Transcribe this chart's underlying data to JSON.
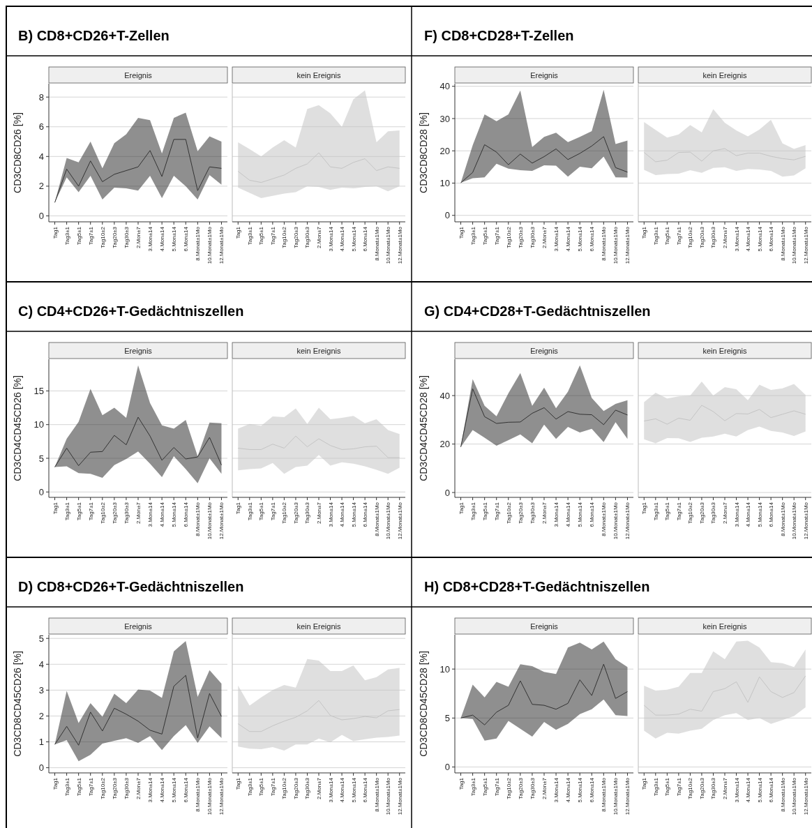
{
  "chart_data": [
    {
      "type": "line",
      "title": "B) CD8+CD26+T-Zellen",
      "subtitle": "Ereignis",
      "ylabel": "CD3CD8CD26 [%]",
      "categories": [
        "Tag1",
        "Tag3±1",
        "Tag5±1",
        "Tag7±1",
        "Tag10±2",
        "Tag20±3",
        "Tag30±3",
        "2.Mon±7",
        "3.Mon±14",
        "4.Mon±14",
        "5.Mon±14",
        "6.Mon±14",
        "8.Monat±1Mo",
        "10.Monat±1Mo",
        "12.Monat±1Mo"
      ],
      "ylim": [
        -0.4,
        8.9
      ],
      "yticks": [
        0,
        2,
        4,
        6,
        8
      ],
      "grid": "y",
      "series": [
        {
          "color": "#333333",
          "values": [
            0.9,
            3.15,
            2.0,
            3.7,
            2.3,
            2.8,
            3.05,
            3.3,
            4.4,
            2.65,
            5.15,
            5.15,
            1.7,
            3.3,
            3.2
          ],
          "lower": [
            0.9,
            2.6,
            1.6,
            2.7,
            1.1,
            1.9,
            1.85,
            1.7,
            2.7,
            1.2,
            2.7,
            2.0,
            1.1,
            2.75,
            2.1
          ],
          "upper": [
            0.9,
            3.9,
            3.6,
            5.0,
            3.2,
            4.9,
            5.5,
            6.6,
            6.45,
            4.2,
            6.6,
            6.95,
            4.35,
            5.35,
            5.0
          ]
        }
      ]
    },
    {
      "type": "line",
      "subtitle": "kein Ereignis",
      "tick_labels": "x",
      "categories": [
        "Tag1",
        "Tag3±1",
        "Tag5±1",
        "Tag7±1",
        "Tag10±2",
        "Tag20±3",
        "Tag30±3",
        "2.Mon±7",
        "3.Mon±14",
        "4.Mon±14",
        "5.Mon±14",
        "6.Mon±14",
        "8.Monat±1Mo",
        "10.Monat±1Mo",
        "12.Monat±1Mo"
      ],
      "ylim": [
        -0.4,
        8.9
      ],
      "yticks": [
        0,
        2,
        4,
        6,
        8
      ],
      "grid": "y",
      "series": [
        {
          "color": "#c4c4c4",
          "values": [
            3.0,
            2.4,
            2.25,
            2.5,
            2.75,
            3.2,
            3.5,
            4.25,
            3.3,
            3.2,
            3.6,
            3.85,
            3.05,
            3.3,
            3.2
          ],
          "lower": [
            1.9,
            1.55,
            1.2,
            1.35,
            1.5,
            1.6,
            2.0,
            1.95,
            1.75,
            1.9,
            1.85,
            1.95,
            2.0,
            1.65,
            2.0
          ],
          "upper": [
            4.95,
            4.5,
            4.0,
            4.6,
            5.1,
            4.6,
            7.2,
            7.45,
            6.9,
            6.0,
            7.85,
            8.45,
            4.95,
            5.7,
            5.75
          ]
        }
      ]
    },
    {
      "type": "line",
      "title": "F) CD8+CD28+T-Zellen",
      "subtitle": "Ereignis",
      "ylabel": "CD3CD8CD28 [%]",
      "categories": [
        "Tag1",
        "Tag3±1",
        "Tag5±1",
        "Tag7±1",
        "Tag10±2",
        "Tag20±3",
        "Tag30±3",
        "2.Mon±7",
        "3.Mon±14",
        "4.Mon±14",
        "5.Mon±14",
        "6.Mon±14",
        "8.Monat±1Mo",
        "10.Monat±1Mo",
        "12.Monat±1Mo"
      ],
      "ylim": [
        -2,
        40.8
      ],
      "yticks": [
        0,
        10,
        20,
        30,
        40
      ],
      "grid": "y",
      "series": [
        {
          "color": "#333333",
          "values": [
            10.1,
            13.3,
            21.9,
            19.6,
            15.7,
            19.0,
            16.2,
            18.2,
            20.6,
            17.3,
            19.2,
            21.5,
            24.4,
            14.8,
            13.4
          ],
          "lower": [
            10.1,
            11.5,
            11.8,
            16,
            14.5,
            14,
            13.8,
            15.5,
            15.4,
            12,
            15.1,
            14.6,
            18.2,
            11.8,
            11.7
          ],
          "upper": [
            10.1,
            21.7,
            31.3,
            29.2,
            31.3,
            38.7,
            21.2,
            24.3,
            25.6,
            22.7,
            24.3,
            26.1,
            38.9,
            22.1,
            23.2
          ]
        }
      ]
    },
    {
      "type": "line",
      "subtitle": "kein Ereignis",
      "tick_labels": "x",
      "categories": [
        "Tag1",
        "Tag3±1",
        "Tag5±1",
        "Tag7±1",
        "Tag10±2",
        "Tag20±3",
        "Tag30±3",
        "2.Mon±7",
        "3.Mon±14",
        "4.Mon±14",
        "5.Mon±14",
        "6.Mon±14",
        "8.Monat±1Mo",
        "10.Monat±1Mo",
        "12.Monat±1Mo"
      ],
      "ylim": [
        -2,
        40.8
      ],
      "yticks": [
        0,
        10,
        20,
        30,
        40
      ],
      "grid": "y",
      "series": [
        {
          "color": "#c4c4c4",
          "values": [
            19.5,
            16.6,
            17.1,
            19.5,
            19.6,
            16.8,
            20.0,
            20.7,
            18.5,
            19.3,
            19.3,
            18.3,
            17.6,
            17.2,
            18.3
          ],
          "lower": [
            14.1,
            12.5,
            12.8,
            12.9,
            14.0,
            13.2,
            14.7,
            14.9,
            13.8,
            14.4,
            14.2,
            13.8,
            12.0,
            12.4,
            14.6
          ],
          "upper": [
            28.9,
            26.5,
            24.1,
            25.1,
            28.0,
            25.7,
            32.9,
            28.7,
            26.3,
            24.5,
            26.6,
            29.6,
            22.3,
            20.6,
            21.8
          ]
        }
      ]
    },
    {
      "type": "line",
      "title": "C) CD4+CD26+T-Gedächtniszellen",
      "subtitle": "Ereignis",
      "ylabel": "CD3CD4CD45CD26 [%]",
      "categories": [
        "Tag1",
        "Tag3±1",
        "Tag5±1",
        "Tag7±1",
        "Tag10±2",
        "Tag20±3",
        "Tag30±3",
        "2.Mon±7",
        "3.Mon±14",
        "4.Mon±14",
        "5.Mon±14",
        "6.Mon±14",
        "8.Monat±1Mo",
        "10.Monat±1Mo",
        "12.Monat±1Mo"
      ],
      "ylim": [
        -0.8,
        19.7
      ],
      "yticks": [
        0,
        5,
        10,
        15
      ],
      "grid": "y",
      "series": [
        {
          "color": "#333333",
          "values": [
            3.7,
            6.5,
            3.9,
            5.9,
            6.0,
            8.4,
            7.0,
            11.1,
            8.3,
            4.7,
            6.6,
            4.9,
            5.2,
            8.1,
            4.0
          ],
          "lower": [
            3.7,
            3.8,
            2.8,
            2.7,
            2.1,
            4.0,
            4.9,
            6.0,
            4.2,
            2.2,
            5.3,
            3.4,
            1.3,
            5.0,
            2.7
          ],
          "upper": [
            3.7,
            7.9,
            10.4,
            15.3,
            11.4,
            12.5,
            11.0,
            18.8,
            13.2,
            9.9,
            9.4,
            10.7,
            5.3,
            10.3,
            10.2
          ]
        }
      ]
    },
    {
      "type": "line",
      "subtitle": "kein Ereignis",
      "tick_labels": "x",
      "categories": [
        "Tag1",
        "Tag3±1",
        "Tag5±1",
        "Tag7±1",
        "Tag10±2",
        "Tag20±3",
        "Tag30±3",
        "2.Mon±7",
        "3.Mon±14",
        "4.Mon±14",
        "5.Mon±14",
        "6.Mon±14",
        "8.Monat±1Mo",
        "10.Monat±1Mo",
        "12.Monat±1Mo"
      ],
      "ylim": [
        -0.8,
        19.7
      ],
      "yticks": [
        0,
        5,
        10,
        15
      ],
      "grid": "y",
      "series": [
        {
          "color": "#c4c4c4",
          "values": [
            6.5,
            6.3,
            6.3,
            7.1,
            6.5,
            8.3,
            6.7,
            7.9,
            6.9,
            6.3,
            6.4,
            6.7,
            6.8,
            5.1,
            5.1
          ],
          "lower": [
            3.2,
            3.4,
            3.5,
            4.3,
            2.7,
            3.7,
            3.9,
            5.5,
            3.9,
            4.4,
            4.2,
            3.8,
            3.3,
            2.7,
            3.6
          ],
          "upper": [
            9.4,
            10.1,
            9.8,
            11.2,
            11.1,
            12.4,
            10.1,
            12.5,
            10.8,
            11.0,
            11.3,
            10.2,
            10.8,
            9.2,
            8.6
          ]
        }
      ]
    },
    {
      "type": "line",
      "title": "G) CD4+CD28+T-Gedächtniszellen",
      "subtitle": "Ereignis",
      "ylabel": "CD3CD4CD45CD28 [%]",
      "categories": [
        "Tag1",
        "Tag3±1",
        "Tag5±1",
        "Tag7±1",
        "Tag10±2",
        "Tag20±3",
        "Tag30±3",
        "2.Mon±7",
        "3.Mon±14",
        "4.Mon±14",
        "5.Mon±14",
        "6.Mon±14",
        "8.Monat±1Mo",
        "10.Monat±1Mo",
        "12.Monat±1Mo"
      ],
      "ylim": [
        -2,
        55
      ],
      "yticks": [
        0,
        20,
        40
      ],
      "grid": "y",
      "series": [
        {
          "color": "#333333",
          "values": [
            18.8,
            42.8,
            31.3,
            28.5,
            29.0,
            29.1,
            32.7,
            35.0,
            30.3,
            33.4,
            32.3,
            32.1,
            28.0,
            34.0,
            32.0
          ],
          "lower": [
            18.8,
            25.8,
            22.6,
            19.3,
            21.6,
            24.0,
            20.3,
            28.0,
            22.1,
            27.1,
            24.8,
            26.3,
            20.8,
            29.0,
            22.1
          ],
          "upper": [
            18.8,
            46.8,
            35.8,
            31.5,
            41.0,
            49.3,
            35.8,
            43.3,
            34.8,
            41.6,
            52.5,
            39.0,
            33.6,
            36.6,
            38.1
          ]
        }
      ]
    },
    {
      "type": "line",
      "subtitle": "kein Ereignis",
      "tick_labels": "x",
      "categories": [
        "Tag1",
        "Tag3±1",
        "Tag5±1",
        "Tag7±1",
        "Tag10±2",
        "Tag20±3",
        "Tag30±3",
        "2.Mon±7",
        "3.Mon±14",
        "4.Mon±14",
        "5.Mon±14",
        "6.Mon±14",
        "8.Monat±1Mo",
        "10.Monat±1Mo",
        "12.Monat±1Mo"
      ],
      "ylim": [
        -2,
        55
      ],
      "yticks": [
        0,
        20,
        40
      ],
      "grid": "y",
      "series": [
        {
          "color": "#c4c4c4",
          "values": [
            29.5,
            30.4,
            28.2,
            30.7,
            29.8,
            36.0,
            33.4,
            29.6,
            32.6,
            32.4,
            34.3,
            30.9,
            32.3,
            33.7,
            32.3
          ],
          "lower": [
            22.0,
            20.3,
            22.5,
            22.4,
            20.9,
            22.6,
            23.1,
            24.3,
            23.1,
            25.8,
            27.2,
            25.4,
            24.8,
            23.3,
            25.2
          ],
          "upper": [
            37.3,
            41.2,
            38.8,
            39.7,
            40.0,
            45.8,
            40.0,
            43.5,
            42.6,
            38.1,
            44.5,
            42.3,
            43.0,
            44.8,
            40.3
          ]
        }
      ]
    },
    {
      "type": "line",
      "title": "D) CD8+CD26+T-Gedächtniszellen",
      "subtitle": "Ereignis",
      "ylabel": "CD3CD8CD45CD26 [%]",
      "categories": [
        "Tag1",
        "Tag3±1",
        "Tag5±1",
        "Tag7±1",
        "Tag10±2",
        "Tag20±3",
        "Tag30±3",
        "2.Mon±7",
        "3.Mon±14",
        "4.Mon±14",
        "5.Mon±14",
        "6.Mon±14",
        "8.Monat±1Mo",
        "10.Monat±1Mo",
        "12.Monat±1Mo"
      ],
      "ylim": [
        -0.2,
        5.14
      ],
      "yticks": [
        0,
        1,
        2,
        3,
        4,
        5
      ],
      "grid": "y",
      "series": [
        {
          "color": "#333333",
          "values": [
            0.9,
            1.6,
            0.87,
            2.15,
            1.42,
            2.3,
            2.07,
            1.8,
            1.45,
            1.3,
            3.15,
            3.57,
            1.15,
            2.87,
            1.98
          ],
          "lower": [
            0.9,
            1.07,
            0.25,
            0.5,
            0.93,
            1.04,
            1.14,
            0.96,
            1.22,
            0.68,
            1.22,
            1.65,
            0.96,
            1.6,
            1.15
          ],
          "upper": [
            0.9,
            2.97,
            1.73,
            2.5,
            1.97,
            2.86,
            2.5,
            3.02,
            2.98,
            2.7,
            4.5,
            4.9,
            2.74,
            3.77,
            3.25
          ]
        }
      ]
    },
    {
      "type": "line",
      "subtitle": "kein Ereignis",
      "tick_labels": "x",
      "categories": [
        "Tag1",
        "Tag3±1",
        "Tag5±1",
        "Tag7±1",
        "Tag10±2",
        "Tag20±3",
        "Tag30±3",
        "2.Mon±7",
        "3.Mon±14",
        "4.Mon±14",
        "5.Mon±14",
        "6.Mon±14",
        "8.Monat±1Mo",
        "10.Monat±1Mo",
        "12.Monat±1Mo"
      ],
      "ylim": [
        -0.2,
        5.14
      ],
      "yticks": [
        0,
        1,
        2,
        3,
        4,
        5
      ],
      "grid": "y",
      "series": [
        {
          "color": "#c4c4c4",
          "values": [
            1.7,
            1.4,
            1.4,
            1.62,
            1.8,
            1.95,
            2.2,
            2.6,
            2.02,
            1.85,
            1.9,
            1.98,
            1.93,
            2.2,
            2.25
          ],
          "lower": [
            0.82,
            0.74,
            0.72,
            0.8,
            0.66,
            0.9,
            0.9,
            1.13,
            0.98,
            1.27,
            1.03,
            1.1,
            1.16,
            1.19,
            1.24
          ],
          "upper": [
            3.18,
            2.4,
            2.72,
            3.0,
            3.2,
            3.1,
            4.2,
            4.14,
            3.74,
            3.74,
            3.95,
            3.38,
            3.5,
            3.8,
            3.86
          ]
        }
      ]
    },
    {
      "type": "line",
      "title": "H) CD8+CD28+T-Gedächtniszellen",
      "subtitle": "Ereignis",
      "ylabel": "CD3CD8CD45CD28 [%]",
      "categories": [
        "Tag1",
        "Tag3±1",
        "Tag5±1",
        "Tag7±1",
        "Tag10±2",
        "Tag20±3",
        "Tag30±3",
        "2.Mon±7",
        "3.Mon±14",
        "4.Mon±14",
        "5.Mon±14",
        "6.Mon±14",
        "8.Monat±1Mo",
        "10.Monat±1Mo",
        "12.Monat±1Mo"
      ],
      "ylim": [
        -0.6,
        13.5
      ],
      "yticks": [
        0,
        5,
        10
      ],
      "grid": "y",
      "series": [
        {
          "color": "#333333",
          "values": [
            5.0,
            5.3,
            4.3,
            5.6,
            6.3,
            8.8,
            6.4,
            6.3,
            5.9,
            6.5,
            8.9,
            7.3,
            10.5,
            7.0,
            7.7
          ],
          "lower": [
            5.0,
            4.9,
            2.7,
            2.9,
            4.7,
            3.9,
            3.1,
            4.6,
            3.8,
            4.4,
            5.4,
            5.9,
            6.9,
            5.3,
            5.2
          ],
          "upper": [
            5.0,
            8.4,
            7.1,
            8.7,
            8.2,
            10.5,
            10.3,
            9.7,
            9.5,
            12.2,
            12.7,
            12.0,
            12.8,
            11.0,
            10.2
          ]
        }
      ]
    },
    {
      "type": "line",
      "subtitle": "kein Ereignis",
      "tick_labels": "x",
      "categories": [
        "Tag1",
        "Tag3±1",
        "Tag5±1",
        "Tag7±1",
        "Tag10±2",
        "Tag20±3",
        "Tag30±3",
        "2.Mon±7",
        "3.Mon±14",
        "4.Mon±14",
        "5.Mon±14",
        "6.Mon±14",
        "8.Monat±1Mo",
        "10.Monat±1Mo",
        "12.Monat±1Mo"
      ],
      "ylim": [
        -0.6,
        13.5
      ],
      "yticks": [
        0,
        5,
        10
      ],
      "grid": "y",
      "series": [
        {
          "color": "#c4c4c4",
          "values": [
            6.3,
            5.3,
            5.3,
            5.4,
            5.9,
            5.7,
            7.7,
            8.0,
            8.7,
            6.6,
            9.2,
            7.7,
            7.1,
            7.6,
            9.3
          ],
          "lower": [
            3.7,
            2.9,
            3.5,
            3.4,
            3.7,
            3.9,
            4.8,
            5.3,
            5.5,
            4.8,
            5.0,
            4.4,
            4.8,
            5.2,
            6.1
          ],
          "upper": [
            8.3,
            7.8,
            7.9,
            8.2,
            9.6,
            9.6,
            11.8,
            11.0,
            12.8,
            12.9,
            12.2,
            10.7,
            10.6,
            10.2,
            12.0
          ]
        }
      ]
    }
  ]
}
